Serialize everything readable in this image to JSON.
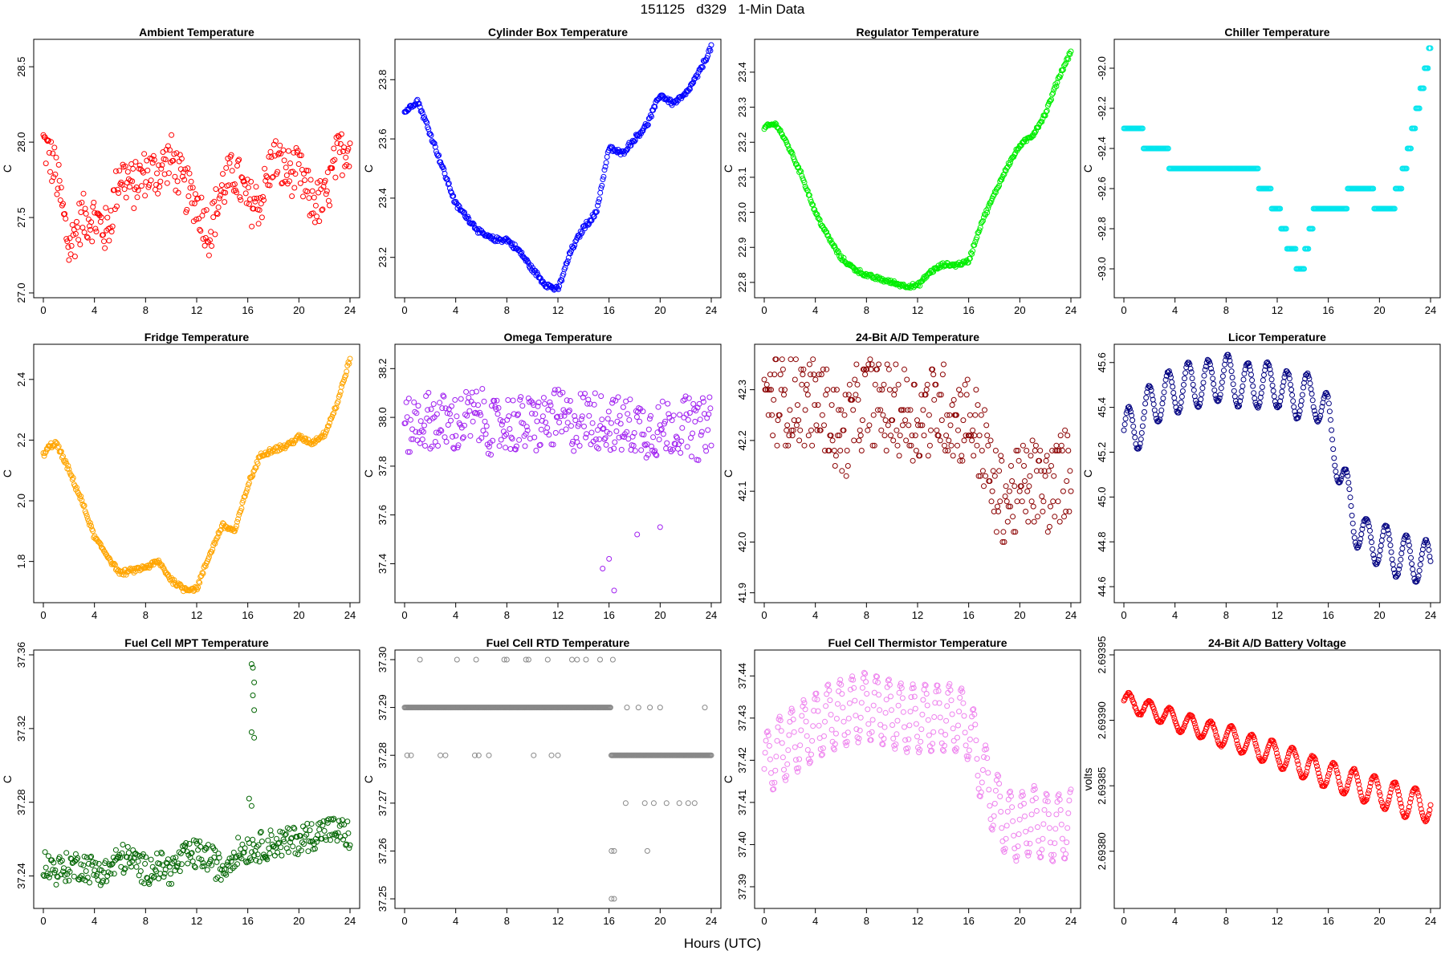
{
  "page": {
    "title": "151125   d329   1-Min Data",
    "xlabel": "Hours (UTC)"
  },
  "chart_data": [
    {
      "type": "scatter",
      "title": "Ambient Temperature",
      "ylabel": "C",
      "color": "#ff0000",
      "xlim": [
        0,
        24
      ],
      "xticks": [
        0,
        4,
        8,
        12,
        16,
        20,
        24
      ],
      "xtick_labels": [
        "0",
        "4",
        "8",
        "12",
        "16",
        "20",
        "24"
      ],
      "ylim": [
        27.0,
        28.65
      ],
      "yticks": [
        27.0,
        27.5,
        28.0,
        28.5
      ],
      "ytick_labels": [
        "27.0",
        "27.5",
        "28.0",
        "28.5"
      ],
      "x": [
        0,
        1,
        2,
        3,
        4,
        5,
        6,
        7,
        8,
        9,
        10,
        11,
        12,
        13,
        14,
        15,
        16,
        17,
        18,
        19,
        20,
        21,
        22,
        23,
        24
      ],
      "y": [
        28.0,
        27.8,
        27.3,
        27.5,
        27.5,
        27.4,
        27.8,
        27.7,
        27.8,
        27.8,
        27.9,
        27.7,
        27.6,
        27.4,
        27.7,
        27.8,
        27.6,
        27.6,
        27.9,
        27.8,
        27.8,
        27.6,
        27.6,
        27.9,
        28.0
      ],
      "band": 0.16
    },
    {
      "type": "scatter",
      "title": "Cylinder Box Temperature",
      "ylabel": "C",
      "color": "#0000ff",
      "xlim": [
        0,
        24
      ],
      "xticks": [
        0,
        4,
        8,
        12,
        16,
        20,
        24
      ],
      "xtick_labels": [
        "0",
        "4",
        "8",
        "12",
        "16",
        "20",
        "24"
      ],
      "ylim": [
        23.08,
        23.92
      ],
      "yticks": [
        23.2,
        23.4,
        23.6,
        23.8
      ],
      "ytick_labels": [
        "23.2",
        "23.4",
        "23.6",
        "23.8"
      ],
      "x": [
        0,
        0.5,
        1,
        2,
        3,
        4,
        5,
        6,
        7,
        8,
        9,
        10,
        11,
        12,
        13,
        14,
        15,
        16,
        17,
        18,
        19,
        20,
        21,
        22,
        23,
        24
      ],
      "y": [
        23.69,
        23.71,
        23.73,
        23.62,
        23.5,
        23.38,
        23.33,
        23.28,
        23.26,
        23.26,
        23.22,
        23.16,
        23.11,
        23.09,
        23.22,
        23.3,
        23.35,
        23.57,
        23.55,
        23.6,
        23.65,
        23.75,
        23.72,
        23.75,
        23.82,
        23.91
      ],
      "band": 0.008
    },
    {
      "type": "scatter",
      "title": "Regulator Temperature",
      "ylabel": "C",
      "color": "#00ee00",
      "xlim": [
        0,
        24
      ],
      "xticks": [
        0,
        4,
        8,
        12,
        16,
        20,
        24
      ],
      "xtick_labels": [
        "0",
        "4",
        "8",
        "12",
        "16",
        "20",
        "24"
      ],
      "ylim": [
        22.77,
        23.48
      ],
      "yticks": [
        22.8,
        22.9,
        23.0,
        23.1,
        23.2,
        23.3,
        23.4
      ],
      "ytick_labels": [
        "22.8",
        "22.9",
        "23.0",
        "23.1",
        "23.2",
        "23.3",
        "23.4"
      ],
      "x": [
        0,
        0.5,
        1,
        2,
        3,
        4,
        5,
        6,
        7,
        8,
        9,
        10,
        11,
        12,
        13,
        14,
        15,
        16,
        17,
        18,
        19,
        20,
        21,
        22,
        23,
        24
      ],
      "y": [
        23.24,
        23.25,
        23.25,
        23.18,
        23.1,
        23.0,
        22.93,
        22.87,
        22.84,
        22.82,
        22.81,
        22.8,
        22.79,
        22.79,
        22.83,
        22.85,
        22.85,
        22.86,
        22.97,
        23.05,
        23.13,
        23.19,
        23.22,
        23.28,
        23.38,
        23.46
      ],
      "band": 0.005
    },
    {
      "type": "scatter",
      "title": "Chiller Temperature",
      "ylabel": "C",
      "color": "#00e5ee",
      "xlim": [
        0,
        24
      ],
      "xticks": [
        0,
        4,
        8,
        12,
        16,
        20,
        24
      ],
      "xtick_labels": [
        "0",
        "4",
        "8",
        "12",
        "16",
        "20",
        "24"
      ],
      "ylim": [
        -93.12,
        -91.88
      ],
      "yticks": [
        -93.0,
        -92.8,
        -92.6,
        -92.4,
        -92.2,
        -92.0
      ],
      "ytick_labels": [
        "-93.0",
        "-92.8",
        "-92.6",
        "-92.4",
        "-92.2",
        "-92.0"
      ],
      "x": [
        0,
        1,
        2,
        3,
        4,
        5,
        6,
        7,
        8,
        9,
        10,
        11,
        12,
        13,
        14,
        15,
        16,
        17,
        18,
        19,
        20,
        21,
        22,
        23,
        24
      ],
      "y": [
        -92.3,
        -92.3,
        -92.4,
        -92.4,
        -92.5,
        -92.5,
        -92.5,
        -92.5,
        -92.5,
        -92.5,
        -92.5,
        -92.6,
        -92.7,
        -92.9,
        -93.0,
        -92.7,
        -92.7,
        -92.7,
        -92.6,
        -92.6,
        -92.7,
        -92.7,
        -92.5,
        -92.2,
        -91.9
      ],
      "band": 0.0,
      "quantize": 0.1
    },
    {
      "type": "scatter",
      "title": "Fridge Temperature",
      "ylabel": "C",
      "color": "#ffa500",
      "xlim": [
        0,
        24
      ],
      "xticks": [
        0,
        4,
        8,
        12,
        16,
        20,
        24
      ],
      "xtick_labels": [
        "0",
        "4",
        "8",
        "12",
        "16",
        "20",
        "24"
      ],
      "ylim": [
        1.68,
        2.5
      ],
      "yticks": [
        1.8,
        2.0,
        2.2,
        2.4
      ],
      "ytick_labels": [
        "1.8",
        "2.0",
        "2.2",
        "2.4"
      ],
      "x": [
        0,
        0.5,
        1,
        2,
        3,
        4,
        5,
        6,
        7,
        8,
        9,
        10,
        11,
        12,
        13,
        14,
        15,
        16,
        17,
        18,
        19,
        20,
        21,
        22,
        23,
        24
      ],
      "y": [
        2.15,
        2.18,
        2.19,
        2.1,
        2.0,
        1.88,
        1.82,
        1.76,
        1.77,
        1.78,
        1.8,
        1.74,
        1.71,
        1.71,
        1.82,
        1.92,
        1.9,
        2.05,
        2.15,
        2.17,
        2.18,
        2.21,
        2.19,
        2.22,
        2.32,
        2.47
      ],
      "band": 0.008
    },
    {
      "type": "scatter",
      "title": "Omega Temperature",
      "ylabel": "C",
      "color": "#a020f0",
      "xlim": [
        0,
        24
      ],
      "xticks": [
        0,
        4,
        8,
        12,
        16,
        20,
        24
      ],
      "xtick_labels": [
        "0",
        "4",
        "8",
        "12",
        "16",
        "20",
        "24"
      ],
      "ylim": [
        37.26,
        38.28
      ],
      "yticks": [
        37.4,
        37.6,
        37.8,
        38.0,
        38.2
      ],
      "ytick_labels": [
        "37.4",
        "37.6",
        "37.8",
        "38.0",
        "38.2"
      ],
      "x": [
        0,
        1,
        2,
        3,
        4,
        5,
        6,
        7,
        8,
        9,
        10,
        11,
        12,
        13,
        14,
        15,
        16,
        17,
        18,
        19,
        20,
        21,
        22,
        23,
        24
      ],
      "y": [
        37.95,
        37.98,
        37.99,
        37.98,
        37.97,
        38.0,
        38.0,
        37.95,
        37.98,
        37.97,
        37.97,
        37.98,
        38.0,
        37.97,
        38.0,
        37.99,
        37.98,
        37.96,
        37.97,
        37.95,
        37.95,
        37.97,
        37.97,
        37.94,
        38.0
      ],
      "band": 0.12,
      "outliers": [
        [
          15.5,
          37.38
        ],
        [
          16.0,
          37.42
        ],
        [
          16.4,
          37.29
        ],
        [
          18.2,
          37.52
        ],
        [
          20.0,
          37.55
        ]
      ]
    },
    {
      "type": "scatter",
      "title": "24-Bit A/D Temperature",
      "ylabel": "C",
      "color": "#8b0000",
      "xlim": [
        0,
        24
      ],
      "xticks": [
        0,
        4,
        8,
        12,
        16,
        20,
        24
      ],
      "xtick_labels": [
        "0",
        "4",
        "8",
        "12",
        "16",
        "20",
        "24"
      ],
      "ylim": [
        41.89,
        42.38
      ],
      "yticks": [
        41.9,
        42.0,
        42.1,
        42.2,
        42.3
      ],
      "ytick_labels": [
        "41.9",
        "42.0",
        "42.1",
        "42.2",
        "42.3"
      ],
      "x": [
        0,
        1,
        2,
        3,
        4,
        5,
        6,
        7,
        8,
        9,
        10,
        11,
        12,
        13,
        14,
        15,
        16,
        17,
        18,
        19,
        20,
        21,
        22,
        23,
        24
      ],
      "y": [
        42.28,
        42.28,
        42.28,
        42.28,
        42.27,
        42.26,
        42.2,
        42.25,
        42.28,
        42.27,
        42.26,
        42.26,
        42.24,
        42.26,
        42.27,
        42.24,
        42.25,
        42.2,
        42.1,
        42.08,
        42.1,
        42.12,
        42.1,
        42.12,
        42.15
      ],
      "band": 0.09,
      "quantize": 0.01
    },
    {
      "type": "scatter",
      "title": "Licor Temperature",
      "ylabel": "C",
      "color": "#000080",
      "xlim": [
        0,
        24
      ],
      "xticks": [
        0,
        4,
        8,
        12,
        16,
        20,
        24
      ],
      "xtick_labels": [
        "0",
        "4",
        "8",
        "12",
        "16",
        "20",
        "24"
      ],
      "ylim": [
        44.55,
        45.66
      ],
      "yticks": [
        44.6,
        44.8,
        45.0,
        45.2,
        45.4,
        45.6
      ],
      "ytick_labels": [
        "44.6",
        "44.8",
        "45.0",
        "45.2",
        "45.4",
        "45.6"
      ],
      "x": [
        0,
        1,
        2,
        3,
        4,
        5,
        6,
        7,
        8,
        9,
        10,
        11,
        12,
        13,
        14,
        15,
        16,
        17,
        18,
        19,
        20,
        21,
        22,
        23,
        24
      ],
      "y": [
        45.3,
        45.3,
        45.4,
        45.45,
        45.47,
        45.5,
        45.5,
        45.52,
        45.54,
        45.5,
        45.5,
        45.5,
        45.5,
        45.45,
        45.45,
        45.45,
        45.35,
        45.1,
        44.9,
        44.8,
        44.8,
        44.75,
        44.73,
        44.72,
        44.7
      ],
      "band": 0.0,
      "wave_amp": 0.1,
      "wave_period": 1.55
    },
    {
      "type": "scatter",
      "title": "Fuel Cell MPT Temperature",
      "ylabel": "C",
      "color": "#006400",
      "xlim": [
        0,
        24
      ],
      "xticks": [
        0,
        4,
        8,
        12,
        16,
        20,
        24
      ],
      "xtick_labels": [
        "0",
        "4",
        "8",
        "12",
        "16",
        "20",
        "24"
      ],
      "ylim": [
        37.225,
        37.36
      ],
      "yticks": [
        37.24,
        37.28,
        37.32,
        37.36
      ],
      "ytick_labels": [
        "37.24",
        "37.28",
        "37.32",
        "37.36"
      ],
      "x": [
        0,
        1,
        2,
        3,
        4,
        5,
        6,
        7,
        8,
        9,
        10,
        11,
        12,
        13,
        14,
        15,
        16,
        17,
        18,
        19,
        20,
        21,
        22,
        23,
        24
      ],
      "y": [
        37.247,
        37.243,
        37.245,
        37.246,
        37.243,
        37.242,
        37.25,
        37.248,
        37.243,
        37.246,
        37.243,
        37.25,
        37.252,
        37.25,
        37.243,
        37.253,
        37.255,
        37.256,
        37.258,
        37.258,
        37.26,
        37.262,
        37.265,
        37.264,
        37.262
      ],
      "band": 0.008,
      "outliers": [
        [
          16.3,
          37.355
        ],
        [
          16.4,
          37.353
        ],
        [
          16.5,
          37.345
        ],
        [
          16.4,
          37.338
        ],
        [
          16.5,
          37.33
        ],
        [
          16.3,
          37.318
        ],
        [
          16.5,
          37.315
        ],
        [
          16.3,
          37.278
        ],
        [
          16.1,
          37.282
        ]
      ]
    },
    {
      "type": "scatter",
      "title": "Fuel Cell RTD Temperature",
      "ylabel": "C",
      "color": "#888888",
      "xlim": [
        0,
        24
      ],
      "xticks": [
        0,
        4,
        8,
        12,
        16,
        20,
        24
      ],
      "xtick_labels": [
        "0",
        "4",
        "8",
        "12",
        "16",
        "20",
        "24"
      ],
      "ylim": [
        37.249,
        37.301
      ],
      "yticks": [
        37.25,
        37.26,
        37.27,
        37.28,
        37.29,
        37.3
      ],
      "ytick_labels": [
        "37.25",
        "37.26",
        "37.27",
        "37.28",
        "37.29",
        "37.30"
      ],
      "x": [
        0,
        16,
        16.3,
        24
      ],
      "y": [
        37.29,
        37.29,
        37.28,
        37.28
      ],
      "band": 0.0,
      "quantize": 0.01,
      "outliers": [
        [
          1.2,
          37.3
        ],
        [
          4.1,
          37.3
        ],
        [
          5.6,
          37.3
        ],
        [
          7.8,
          37.3
        ],
        [
          8.0,
          37.3
        ],
        [
          9.5,
          37.3
        ],
        [
          9.7,
          37.3
        ],
        [
          11.2,
          37.3
        ],
        [
          13.1,
          37.3
        ],
        [
          13.5,
          37.3
        ],
        [
          14.2,
          37.3
        ],
        [
          15.3,
          37.3
        ],
        [
          16.3,
          37.3
        ],
        [
          0.2,
          37.28
        ],
        [
          0.5,
          37.28
        ],
        [
          2.8,
          37.28
        ],
        [
          3.2,
          37.28
        ],
        [
          5.5,
          37.28
        ],
        [
          5.8,
          37.28
        ],
        [
          6.6,
          37.28
        ],
        [
          10.1,
          37.28
        ],
        [
          11.5,
          37.28
        ],
        [
          12.0,
          37.28
        ],
        [
          17.4,
          37.29
        ],
        [
          18.3,
          37.29
        ],
        [
          19.2,
          37.29
        ],
        [
          20.0,
          37.29
        ],
        [
          23.5,
          37.29
        ],
        [
          17.3,
          37.27
        ],
        [
          18.8,
          37.27
        ],
        [
          19.5,
          37.27
        ],
        [
          20.5,
          37.27
        ],
        [
          21.5,
          37.27
        ],
        [
          22.2,
          37.27
        ],
        [
          22.7,
          37.27
        ],
        [
          16.2,
          37.26
        ],
        [
          16.4,
          37.26
        ],
        [
          19.0,
          37.26
        ],
        [
          16.2,
          37.25
        ],
        [
          16.4,
          37.25
        ]
      ]
    },
    {
      "type": "scatter",
      "title": "Fuel Cell Thermistor Temperature",
      "ylabel": "C",
      "color": "#ee82ee",
      "xlim": [
        0,
        24
      ],
      "xticks": [
        0,
        4,
        8,
        12,
        16,
        20,
        24
      ],
      "xtick_labels": [
        "0",
        "4",
        "8",
        "12",
        "16",
        "20",
        "24"
      ],
      "ylim": [
        37.386,
        37.445
      ],
      "yticks": [
        37.39,
        37.4,
        37.41,
        37.42,
        37.43,
        37.44
      ],
      "ytick_labels": [
        "37.39",
        "37.40",
        "37.41",
        "37.42",
        "37.43",
        "37.44"
      ],
      "x": [
        0,
        1,
        2,
        3,
        4,
        5,
        6,
        7,
        8,
        9,
        10,
        11,
        12,
        13,
        14,
        15,
        16,
        17,
        18,
        19,
        20,
        21,
        22,
        23,
        24
      ],
      "y": [
        37.418,
        37.422,
        37.424,
        37.426,
        37.428,
        37.43,
        37.431,
        37.432,
        37.433,
        37.432,
        37.431,
        37.43,
        37.43,
        37.43,
        37.43,
        37.43,
        37.428,
        37.418,
        37.41,
        37.405,
        37.404,
        37.406,
        37.404,
        37.404,
        37.405
      ],
      "band": 0.0,
      "wave_amp": 0.008,
      "wave_period": 0.95
    },
    {
      "type": "scatter",
      "title": "24-Bit A/D Battery Voltage",
      "ylabel": "volts",
      "color": "#ff0000",
      "xlim": [
        0,
        24
      ],
      "xticks": [
        0,
        4,
        8,
        12,
        16,
        20,
        24
      ],
      "xtick_labels": [
        "0",
        "4",
        "8",
        "12",
        "16",
        "20",
        "24"
      ],
      "ylim": [
        2.69376,
        2.69395
      ],
      "yticks": [
        2.6938,
        2.69385,
        2.6939,
        2.69395
      ],
      "ytick_labels": [
        "2.69380",
        "2.69385",
        "2.69390",
        "2.69395"
      ],
      "x": [
        0,
        1,
        2,
        3,
        4,
        5,
        6,
        7,
        8,
        9,
        10,
        11,
        12,
        13,
        14,
        15,
        16,
        17,
        18,
        19,
        20,
        21,
        22,
        23,
        24
      ],
      "y": [
        2.693915,
        2.693912,
        2.693908,
        2.693905,
        2.6939,
        2.693897,
        2.693895,
        2.69389,
        2.693888,
        2.693885,
        2.69388,
        2.693877,
        2.693874,
        2.69387,
        2.693866,
        2.693862,
        2.693858,
        2.693855,
        2.693852,
        2.693848,
        2.693845,
        2.693842,
        2.693838,
        2.693836,
        2.693835
      ],
      "band": 0.0,
      "wave_amp": 6.5e-06,
      "wave_period": 1.6,
      "wave_grow": 1.9
    }
  ]
}
